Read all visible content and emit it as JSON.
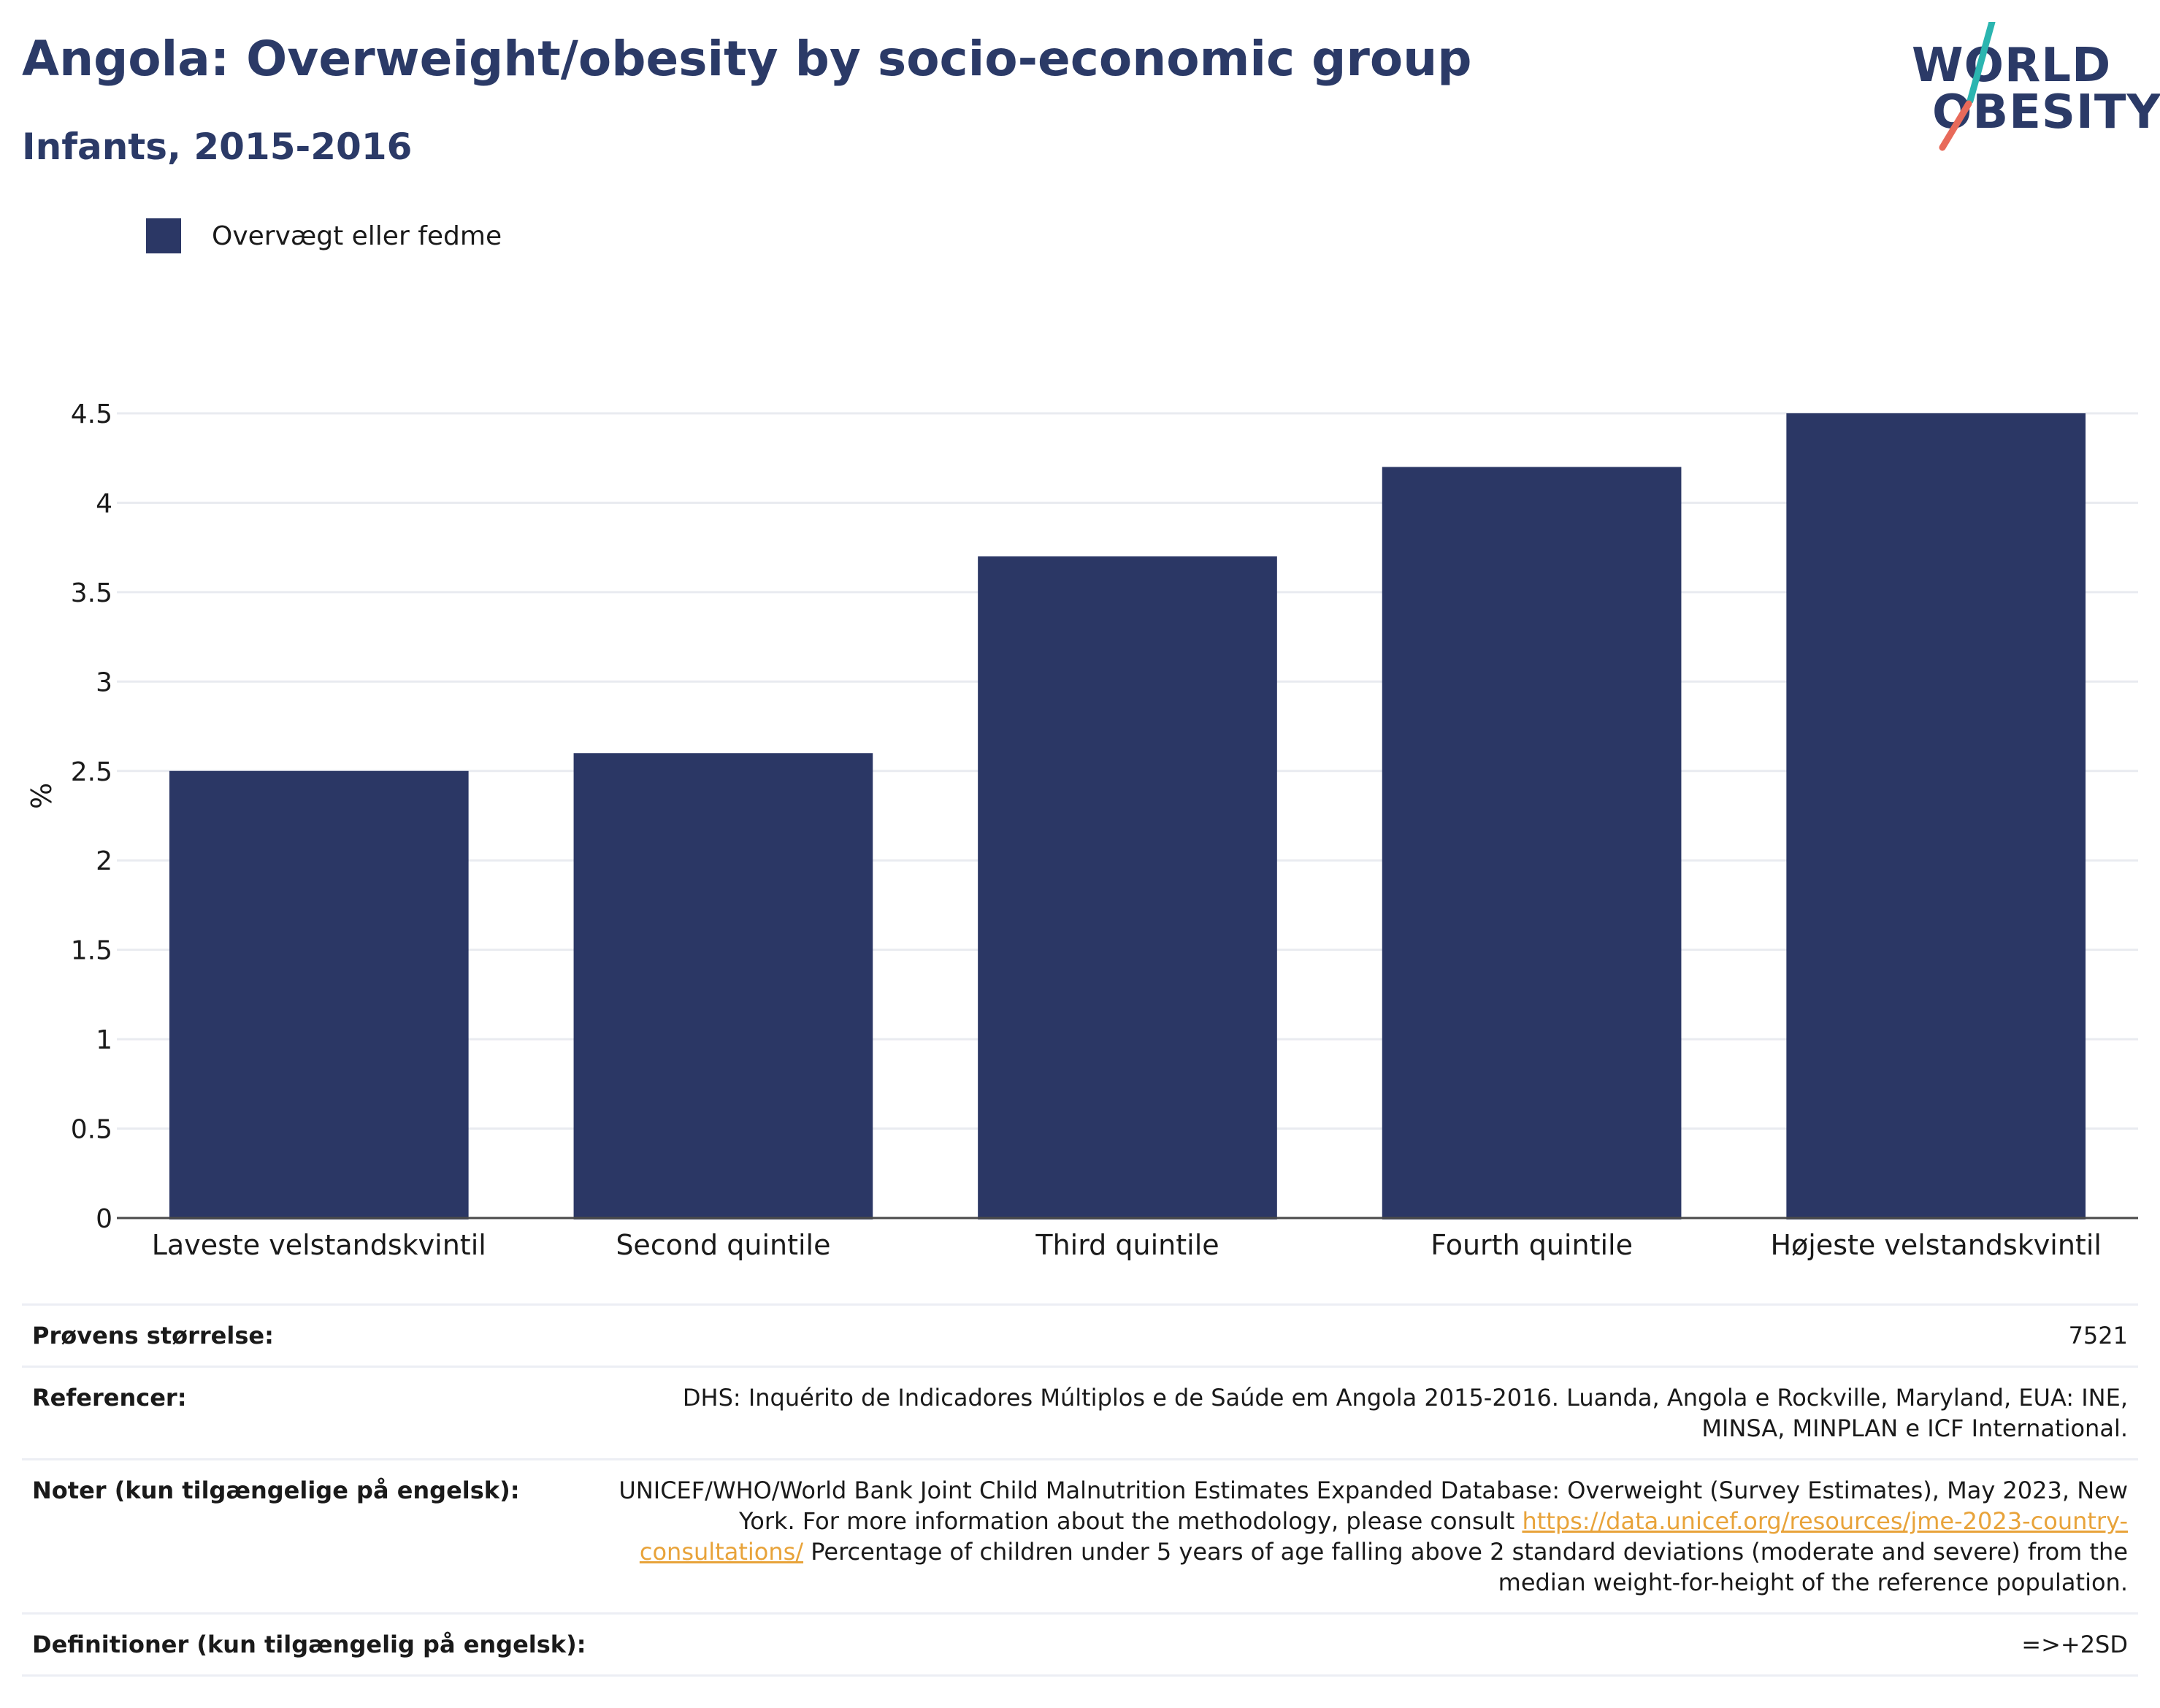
{
  "header": {
    "title": "Angola: Overweight/obesity by socio-economic group",
    "subtitle": "Infants, 2015-2016"
  },
  "logo": {
    "line1": "WORLD",
    "line2": "OBESITY",
    "colors": {
      "text": "#2b3a67",
      "teal": "#2bb5b0",
      "coral": "#e86a5a"
    }
  },
  "legend": {
    "label": "Overvægt eller fedme",
    "color": "#2b3765"
  },
  "chart_data": {
    "type": "bar",
    "categories": [
      "Laveste velstandskvintil",
      "Second quintile",
      "Third quintile",
      "Fourth quintile",
      "Højeste velstandskvintil"
    ],
    "series": [
      {
        "name": "Overvægt eller fedme",
        "values": [
          2.5,
          2.6,
          3.7,
          4.2,
          4.5
        ],
        "color": "#2b3765"
      }
    ],
    "ylabel": "%",
    "ylim": [
      0,
      4.5
    ],
    "yticks": [
      0,
      0.5,
      1,
      1.5,
      2,
      2.5,
      3,
      3.5,
      4,
      4.5
    ],
    "ytick_labels": [
      "0",
      "0.5",
      "1",
      "1.5",
      "2",
      "2.5",
      "3",
      "3.5",
      "4",
      "4.5"
    ],
    "grid": true,
    "legend_position": "top-left"
  },
  "info": {
    "sample_size": {
      "label": "Prøvens størrelse:",
      "value": "7521"
    },
    "references": {
      "label": "Referencer:",
      "value": "DHS: Inquérito de Indicadores Múltiplos e de Saúde em Angola 2015-2016. Luanda, Angola e Rockville, Maryland, EUA: INE, MINSA, MINPLAN e ICF International."
    },
    "notes": {
      "label": "Noter (kun tilgængelige på engelsk):",
      "text_before": "UNICEF/WHO/World Bank Joint Child Malnutrition Estimates Expanded Database: Overweight (Survey Estimates), May 2023, New York. For more information about the methodology, please consult ",
      "link": "https://data.unicef.org/resources/jme-2023-country-consultations/",
      "text_after": " Percentage of children under 5 years of age falling above 2 standard deviations (moderate and severe) from the median weight-for-height of the reference population."
    },
    "definitions": {
      "label": "Definitioner (kun tilgængelig på engelsk):",
      "value": "=>+2SD"
    }
  }
}
